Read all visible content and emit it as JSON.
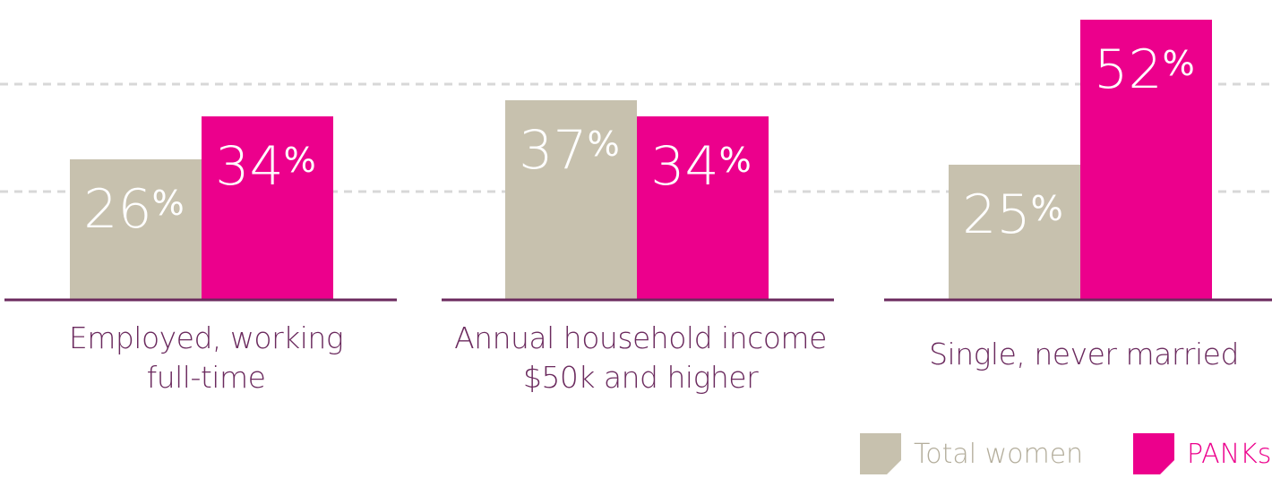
{
  "colors": {
    "total": "#c7c1ae",
    "panks": "#ec008c",
    "axis": "#6b2a5e",
    "grid": "#d8d8d8",
    "label": "#6b2a5e",
    "legend_total_text": "#b3ad9b",
    "legend_panks_text": "#ec008c"
  },
  "chart_data": {
    "type": "bar",
    "categories": [
      "Employed, working full-time",
      "Annual household income $50k and higher",
      "Single, never married"
    ],
    "category_lines": [
      [
        "Employed, working",
        "full-time"
      ],
      [
        "Annual household income",
        "$50k and higher"
      ],
      [
        "Single, never married"
      ]
    ],
    "series": [
      {
        "name": "Total women",
        "values": [
          26,
          37,
          25
        ],
        "labels": [
          "26%",
          "37%",
          "25%"
        ]
      },
      {
        "name": "PANKs",
        "values": [
          34,
          34,
          52
        ],
        "labels": [
          "34%",
          "34%",
          "52%"
        ]
      }
    ],
    "gridlines": [
      20,
      40,
      60
    ],
    "grid": true,
    "legend": "bottom-right"
  },
  "legend": {
    "total_label": "Total women",
    "panks_label": "PANKs"
  }
}
